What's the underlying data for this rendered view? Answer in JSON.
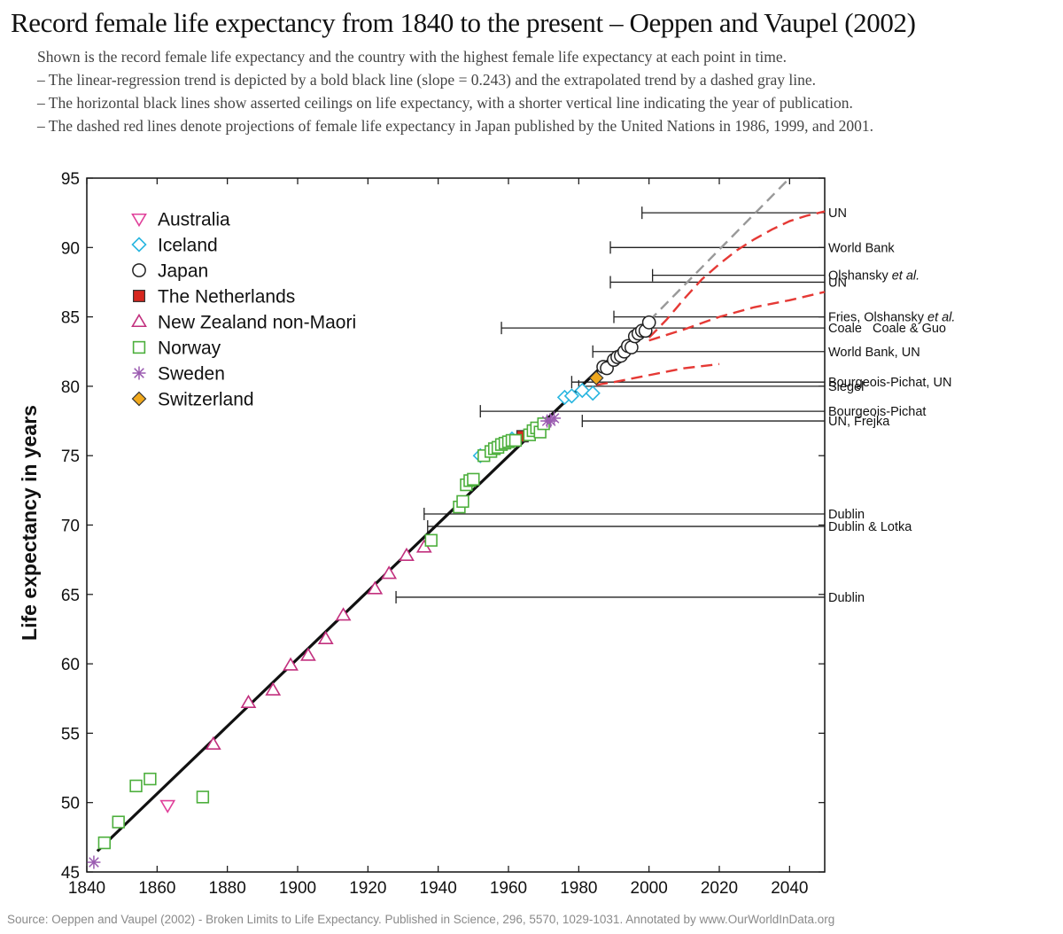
{
  "title": "Record female life expectancy from 1840 to the present – Oeppen and Vaupel (2002)",
  "subtitle_lines": [
    "Shown is the record female life expectancy and the country with the highest female life expectancy at each point in time.",
    "– The linear-regression trend is depicted by a bold black line (slope = 0.243) and the extrapolated trend by a dashed gray line.",
    "– The horizontal black lines show asserted ceilings on life expectancy, with a shorter vertical line indicating the year of publication.",
    "– The dashed red lines denote projections of female life expectancy in Japan published by the United Nations in 1986, 1999, and 2001."
  ],
  "source": "Source: Oeppen and Vaupel (2002) - Broken Limits to Life Expectancy. Published in Science, 296, 5570, 1029-1031. Annotated by www.OurWorldInData.org",
  "chart_data": {
    "type": "scatter",
    "xlabel": "",
    "ylabel": "Life expectancy in years",
    "xlim": [
      1840,
      2050
    ],
    "ylim": [
      45,
      95
    ],
    "xticks": [
      1840,
      1860,
      1880,
      1900,
      1920,
      1940,
      1960,
      1980,
      2000,
      2020,
      2040
    ],
    "yticks": [
      45,
      50,
      55,
      60,
      65,
      70,
      75,
      80,
      85,
      90,
      95
    ],
    "grid": false,
    "legend_position": "top-left",
    "series": [
      {
        "name": "Australia",
        "marker": "triangle-down",
        "color": "#e0409a",
        "points": [
          [
            1863,
            49.8
          ]
        ]
      },
      {
        "name": "Iceland",
        "marker": "diamond",
        "color": "#29b6e0",
        "points": [
          [
            1952,
            75.0
          ],
          [
            1961,
            76.2
          ],
          [
            1976,
            79.2
          ],
          [
            1978,
            79.3
          ],
          [
            1981,
            79.7
          ],
          [
            1984,
            79.5
          ]
        ]
      },
      {
        "name": "Japan",
        "marker": "circle",
        "color": "#222222",
        "points": [
          [
            1987,
            81.4
          ],
          [
            1988,
            81.3
          ],
          [
            1990,
            81.9
          ],
          [
            1991,
            82.1
          ],
          [
            1992,
            82.2
          ],
          [
            1993,
            82.5
          ],
          [
            1994,
            82.9
          ],
          [
            1995,
            82.8
          ],
          [
            1996,
            83.6
          ],
          [
            1997,
            83.8
          ],
          [
            1998,
            84.0
          ],
          [
            1999,
            84.0
          ],
          [
            2000,
            84.6
          ]
        ]
      },
      {
        "name": "The Netherlands",
        "marker": "square-filled",
        "color": "#d7261e",
        "points": [
          [
            1964,
            76.4
          ]
        ]
      },
      {
        "name": "New Zealand non-Maori",
        "marker": "triangle-up",
        "color": "#c2307e",
        "points": [
          [
            1876,
            54.2
          ],
          [
            1886,
            57.2
          ],
          [
            1893,
            58.1
          ],
          [
            1898,
            59.9
          ],
          [
            1903,
            60.6
          ],
          [
            1908,
            61.8
          ],
          [
            1913,
            63.5
          ],
          [
            1922,
            65.4
          ],
          [
            1926,
            66.5
          ],
          [
            1931,
            67.8
          ],
          [
            1936,
            68.4
          ]
        ]
      },
      {
        "name": "Norway",
        "marker": "square",
        "color": "#4caf3c",
        "points": [
          [
            1845,
            47.1
          ],
          [
            1849,
            48.6
          ],
          [
            1854,
            51.2
          ],
          [
            1858,
            51.7
          ],
          [
            1873,
            50.4
          ],
          [
            1938,
            68.9
          ],
          [
            1946,
            71.3
          ],
          [
            1947,
            71.7
          ],
          [
            1948,
            72.9
          ],
          [
            1949,
            73.2
          ],
          [
            1950,
            73.3
          ],
          [
            1953,
            75.0
          ],
          [
            1955,
            75.3
          ],
          [
            1956,
            75.5
          ],
          [
            1957,
            75.6
          ],
          [
            1958,
            75.8
          ],
          [
            1959,
            75.9
          ],
          [
            1960,
            76.0
          ],
          [
            1961,
            76.1
          ],
          [
            1962,
            76.1
          ],
          [
            1966,
            76.5
          ],
          [
            1967,
            76.8
          ],
          [
            1968,
            77.0
          ],
          [
            1969,
            76.7
          ],
          [
            1970,
            77.3
          ]
        ]
      },
      {
        "name": "Sweden",
        "marker": "asterisk",
        "color": "#9a5bb0",
        "points": [
          [
            1842,
            45.7
          ],
          [
            1971,
            77.5
          ],
          [
            1972,
            77.5
          ],
          [
            1973,
            77.7
          ]
        ]
      },
      {
        "name": "Switzerland",
        "marker": "diamond-filled",
        "color": "#f0a81c",
        "points": [
          [
            1985,
            80.6
          ]
        ]
      }
    ],
    "trend": {
      "slope": 0.243,
      "fit_x": [
        1843,
        2000
      ],
      "fit_y": [
        46.5,
        84.7
      ],
      "extrapolated_x": [
        2000,
        2040
      ],
      "extrapolated_y": [
        84.7,
        95.0
      ]
    },
    "ceilings": [
      {
        "label": "UN",
        "value": 92.5,
        "published": 1998
      },
      {
        "label": "World Bank",
        "value": 90.0,
        "published": 1989
      },
      {
        "label": "Olshansky et al.",
        "value": 88.0,
        "published": 2001
      },
      {
        "label": "UN",
        "value": 87.5,
        "published": 1989
      },
      {
        "label": "Fries, Olshansky et al.",
        "value": 85.0,
        "published": 1990
      },
      {
        "label": "Coale   Coale & Guo",
        "value": 84.2,
        "published": 1958
      },
      {
        "label": "World Bank, UN",
        "value": 82.5,
        "published": 1984
      },
      {
        "label": "Bourgeois-Pichat, UN",
        "value": 80.3,
        "published": 1978
      },
      {
        "label": "Siegel",
        "value": 80.0,
        "published": 1980
      },
      {
        "label": "Bourgeois-Pichat",
        "value": 78.2,
        "published": 1952
      },
      {
        "label": "UN, Frejka",
        "value": 77.5,
        "published": 1981
      },
      {
        "label": "Dublin",
        "value": 70.8,
        "published": 1936
      },
      {
        "label": "Dublin & Lotka",
        "value": 69.9,
        "published": 1937
      },
      {
        "label": "Dublin",
        "value": 64.8,
        "published": 1928
      }
    ],
    "projections": [
      {
        "name": "UN 2001",
        "x": [
          2000,
          2005,
          2010,
          2015,
          2020,
          2025,
          2030,
          2035,
          2040,
          2045,
          2050
        ],
        "y": [
          83.5,
          84.8,
          86.3,
          87.7,
          88.8,
          89.8,
          90.6,
          91.3,
          91.9,
          92.3,
          92.6
        ]
      },
      {
        "name": "UN 1999",
        "x": [
          2000,
          2010,
          2020,
          2030,
          2040,
          2050
        ],
        "y": [
          83.3,
          84.1,
          85.0,
          85.7,
          86.2,
          86.8
        ]
      },
      {
        "name": "UN 1986",
        "x": [
          1985,
          1990,
          2000,
          2010,
          2020
        ],
        "y": [
          80.1,
          80.3,
          80.8,
          81.3,
          81.6
        ]
      }
    ]
  }
}
